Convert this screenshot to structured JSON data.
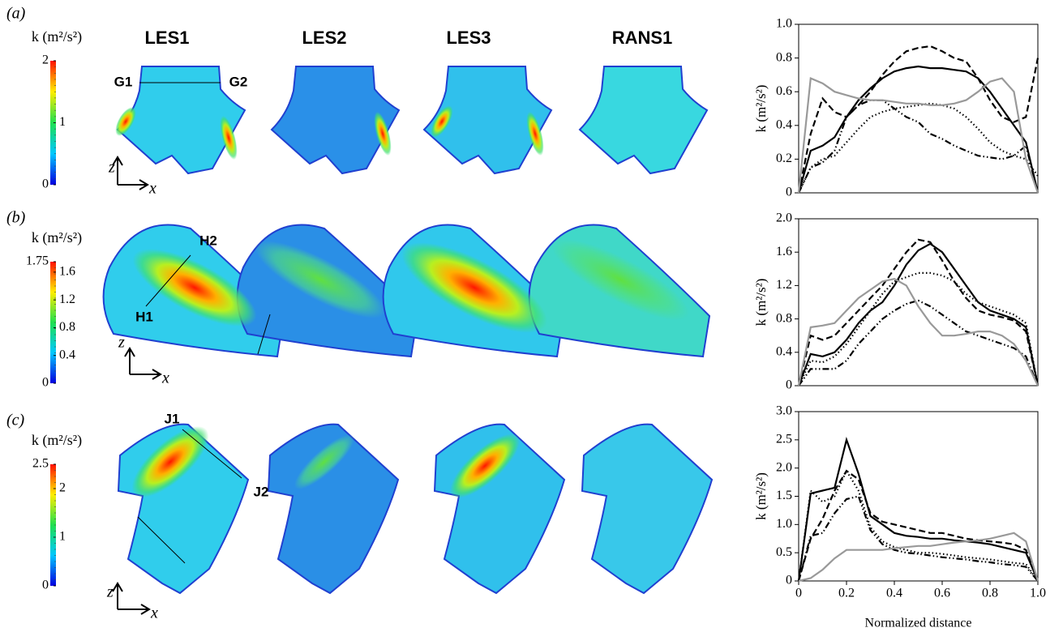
{
  "figure": {
    "columns": [
      "LES1",
      "LES2",
      "LES3",
      "RANS1"
    ],
    "panels": [
      {
        "label": "(a)",
        "colorbar": {
          "label": "k (m²/s²)",
          "lim": [
            0,
            2
          ],
          "ticks": [
            0,
            1,
            2
          ]
        },
        "annotations": [
          "G1",
          "G2"
        ],
        "axis_labels": [
          "z",
          "x"
        ]
      },
      {
        "label": "(b)",
        "colorbar": {
          "label": "k (m²/s²)",
          "lim": [
            0,
            1.75
          ],
          "ticks": [
            0,
            0.4,
            0.8,
            1.2,
            1.6,
            1.75
          ]
        },
        "annotations": [
          "H1",
          "H2"
        ],
        "axis_labels": [
          "z",
          "x"
        ]
      },
      {
        "label": "(c)",
        "colorbar": {
          "label": "k (m²/s²)",
          "lim": [
            0,
            2.5
          ],
          "ticks": [
            0,
            1,
            2,
            2.5
          ]
        },
        "annotations": [
          "J1",
          "J2"
        ],
        "axis_labels": [
          "z",
          "x"
        ]
      }
    ]
  },
  "chart_data": [
    {
      "type": "line",
      "ylabel": "k (m²/s²)",
      "xlim": [
        0,
        1
      ],
      "ylim": [
        0,
        1
      ],
      "yticks": [
        0,
        0.2,
        0.4,
        0.6,
        0.8,
        {
          "value": 1,
          "label": "1.0"
        }
      ],
      "x": [
        0,
        0.05,
        0.1,
        0.15,
        0.2,
        0.25,
        0.3,
        0.35,
        0.4,
        0.45,
        0.5,
        0.55,
        0.6,
        0.65,
        0.7,
        0.75,
        0.8,
        0.85,
        0.9,
        0.95,
        1
      ],
      "series": [
        {
          "color": "#000000",
          "style": "solid",
          "values": [
            0,
            0.25,
            0.28,
            0.33,
            0.45,
            0.55,
            0.62,
            0.68,
            0.72,
            0.74,
            0.75,
            0.74,
            0.74,
            0.73,
            0.72,
            0.68,
            0.6,
            0.5,
            0.4,
            0.3,
            0
          ]
        },
        {
          "color": "#000000",
          "style": "dashed",
          "values": [
            0,
            0.35,
            0.56,
            0.48,
            0.45,
            0.52,
            0.6,
            0.7,
            0.78,
            0.84,
            0.86,
            0.87,
            0.84,
            0.8,
            0.78,
            0.68,
            0.55,
            0.45,
            0.42,
            0.45,
            0.8
          ]
        },
        {
          "color": "#000000",
          "style": "dotted",
          "values": [
            0,
            0.15,
            0.2,
            0.22,
            0.3,
            0.38,
            0.45,
            0.48,
            0.5,
            0.51,
            0.52,
            0.53,
            0.52,
            0.5,
            0.45,
            0.38,
            0.3,
            0.25,
            0.22,
            0.2,
            0.1
          ]
        },
        {
          "color": "#000000",
          "style": "dashdot",
          "values": [
            0,
            0.15,
            0.18,
            0.25,
            0.45,
            0.52,
            0.55,
            0.55,
            0.5,
            0.45,
            0.42,
            0.35,
            0.32,
            0.28,
            0.25,
            0.22,
            0.21,
            0.2,
            0.22,
            0.28,
            0
          ]
        },
        {
          "color": "#999999",
          "style": "solid",
          "values": [
            0,
            0.68,
            0.65,
            0.6,
            0.58,
            0.56,
            0.55,
            0.55,
            0.54,
            0.53,
            0.53,
            0.52,
            0.52,
            0.53,
            0.55,
            0.6,
            0.66,
            0.68,
            0.6,
            0.2,
            0
          ]
        }
      ]
    },
    {
      "type": "line",
      "ylabel": "k (m²/s²)",
      "xlim": [
        0,
        1
      ],
      "ylim": [
        0,
        2
      ],
      "yticks": [
        0,
        0.4,
        0.8,
        1.2,
        1.6,
        {
          "value": 2,
          "label": "2.0"
        }
      ],
      "x": [
        0,
        0.05,
        0.1,
        0.15,
        0.2,
        0.25,
        0.3,
        0.35,
        0.4,
        0.45,
        0.5,
        0.55,
        0.6,
        0.65,
        0.7,
        0.75,
        0.8,
        0.85,
        0.9,
        0.95,
        1
      ],
      "series": [
        {
          "color": "#000000",
          "style": "solid",
          "values": [
            0,
            0.38,
            0.35,
            0.4,
            0.55,
            0.75,
            0.9,
            1.0,
            1.2,
            1.45,
            1.62,
            1.7,
            1.6,
            1.4,
            1.2,
            1.0,
            0.9,
            0.85,
            0.8,
            0.7,
            0
          ]
        },
        {
          "color": "#000000",
          "style": "dashed",
          "values": [
            0,
            0.6,
            0.55,
            0.6,
            0.75,
            0.9,
            1.05,
            1.2,
            1.4,
            1.6,
            1.75,
            1.72,
            1.5,
            1.25,
            1.05,
            0.9,
            0.85,
            0.82,
            0.78,
            0.65,
            0
          ]
        },
        {
          "color": "#000000",
          "style": "dotted",
          "values": [
            0,
            0.3,
            0.28,
            0.35,
            0.5,
            0.7,
            0.9,
            1.1,
            1.25,
            1.3,
            1.35,
            1.35,
            1.32,
            1.25,
            1.1,
            1.0,
            0.95,
            0.9,
            0.85,
            0.75,
            0
          ]
        },
        {
          "color": "#000000",
          "style": "dashdot",
          "values": [
            0,
            0.2,
            0.2,
            0.2,
            0.3,
            0.5,
            0.65,
            0.8,
            0.9,
            0.98,
            1.02,
            0.95,
            0.85,
            0.75,
            0.65,
            0.6,
            0.55,
            0.5,
            0.45,
            0.35,
            0
          ]
        },
        {
          "color": "#999999",
          "style": "solid",
          "values": [
            0,
            0.7,
            0.72,
            0.75,
            0.9,
            1.05,
            1.15,
            1.25,
            1.28,
            1.2,
            0.95,
            0.75,
            0.6,
            0.6,
            0.62,
            0.65,
            0.65,
            0.6,
            0.5,
            0.3,
            0
          ]
        }
      ]
    },
    {
      "type": "line",
      "ylabel": "k (m²/s²)",
      "xlabel": "Normalized distance",
      "xlim": [
        0,
        1
      ],
      "ylim": [
        0,
        3
      ],
      "yticks": [
        0,
        0.5,
        {
          "value": 1,
          "label": "1.0"
        },
        1.5,
        {
          "value": 2,
          "label": "2.0"
        },
        2.5,
        {
          "value": 3,
          "label": "3.0"
        }
      ],
      "xticks": [
        0,
        0.2,
        0.4,
        0.6,
        0.8,
        {
          "value": 1,
          "label": "1.0"
        }
      ],
      "x": [
        0,
        0.05,
        0.1,
        0.15,
        0.2,
        0.25,
        0.3,
        0.35,
        0.4,
        0.45,
        0.5,
        0.55,
        0.6,
        0.65,
        0.7,
        0.75,
        0.8,
        0.85,
        0.9,
        0.95,
        1
      ],
      "series": [
        {
          "color": "#000000",
          "style": "solid",
          "values": [
            0,
            1.55,
            1.6,
            1.65,
            2.5,
            1.9,
            1.15,
            1.0,
            0.85,
            0.8,
            0.78,
            0.75,
            0.75,
            0.72,
            0.7,
            0.68,
            0.65,
            0.6,
            0.55,
            0.5,
            0
          ]
        },
        {
          "color": "#000000",
          "style": "dashed",
          "values": [
            0,
            0.75,
            1.1,
            1.6,
            1.95,
            1.8,
            1.2,
            1.05,
            1.0,
            0.95,
            0.9,
            0.85,
            0.85,
            0.8,
            0.75,
            0.72,
            0.7,
            0.68,
            0.65,
            0.55,
            0
          ]
        },
        {
          "color": "#000000",
          "style": "dotted",
          "values": [
            0,
            1.6,
            1.4,
            1.5,
            1.95,
            1.6,
            0.95,
            0.7,
            0.6,
            0.55,
            0.5,
            0.5,
            0.48,
            0.45,
            0.42,
            0.4,
            0.38,
            0.35,
            0.32,
            0.3,
            0
          ]
        },
        {
          "color": "#000000",
          "style": "dashdot",
          "values": [
            0,
            0.8,
            0.85,
            1.2,
            1.45,
            1.5,
            0.9,
            0.65,
            0.55,
            0.5,
            0.48,
            0.45,
            0.42,
            0.4,
            0.38,
            0.35,
            0.33,
            0.3,
            0.28,
            0.25,
            0
          ]
        },
        {
          "color": "#999999",
          "style": "solid",
          "values": [
            0,
            0.05,
            0.2,
            0.4,
            0.55,
            0.55,
            0.55,
            0.55,
            0.58,
            0.6,
            0.62,
            0.62,
            0.65,
            0.68,
            0.7,
            0.72,
            0.75,
            0.8,
            0.85,
            0.7,
            0
          ]
        }
      ]
    }
  ]
}
